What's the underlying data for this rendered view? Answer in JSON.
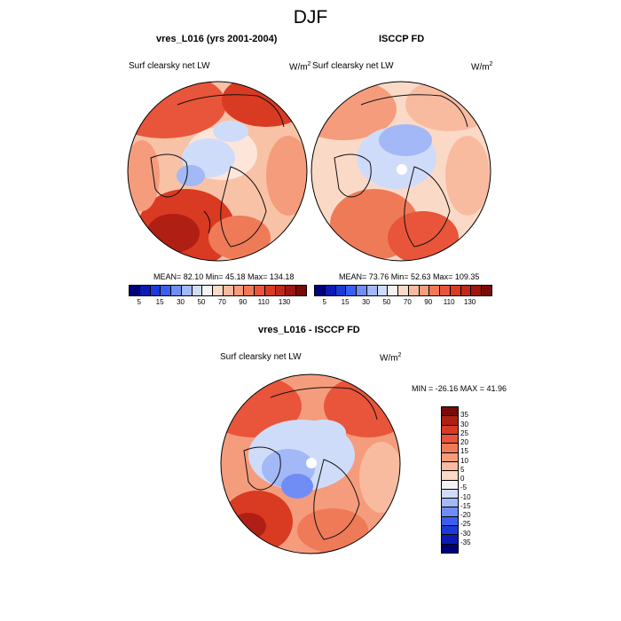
{
  "figure_title": "DJF",
  "panels": [
    {
      "title": "vres_L016 (yrs 2001-2004)",
      "var_label": "Surf clearsky net LW",
      "unit_base": "W/m",
      "unit_sup": "2",
      "stats": "MEAN=  82.10  Min=  45.18  Max= 134.18"
    },
    {
      "title": "ISCCP FD",
      "var_label": "Surf clearsky net LW",
      "unit_base": "W/m",
      "unit_sup": "2",
      "stats": "MEAN=  73.76  Min=  52.63  Max= 109.35"
    },
    {
      "title": "vres_L016 - ISCCP FD",
      "var_label": "Surf clearsky net LW",
      "unit_base": "W/m",
      "unit_sup": "2",
      "stats": "MIN = -26.16 MAX =  41.96"
    }
  ],
  "abs_colorbar": {
    "colors": [
      "#00007a",
      "#0b1bb4",
      "#1a3bd6",
      "#3a5ff0",
      "#6f8df5",
      "#a3b8f7",
      "#cfdcf9",
      "#f3f3f3",
      "#fbd9c7",
      "#f8bba0",
      "#f59c7d",
      "#ef7a58",
      "#e8553a",
      "#d93a22",
      "#c0281a",
      "#9b1710",
      "#780a08"
    ],
    "tick_labels": [
      "5",
      "15",
      "30",
      "50",
      "70",
      "90",
      "110",
      "130"
    ]
  },
  "diff_colorbar": {
    "colors": [
      "#00007a",
      "#0b1bb4",
      "#1a3bd6",
      "#3a5ff0",
      "#6f8df5",
      "#a3b8f7",
      "#cfdcf9",
      "#f3f3f3",
      "#fbd9c7",
      "#f8bba0",
      "#f59c7d",
      "#ef7a58",
      "#e8553a",
      "#d93a22",
      "#b01f14",
      "#780a08"
    ],
    "tick_labels": [
      "35",
      "30",
      "25",
      "20",
      "15",
      "10",
      "5",
      "0",
      "-5",
      "-10",
      "-15",
      "-20",
      "-25",
      "-30",
      "-35"
    ]
  }
}
